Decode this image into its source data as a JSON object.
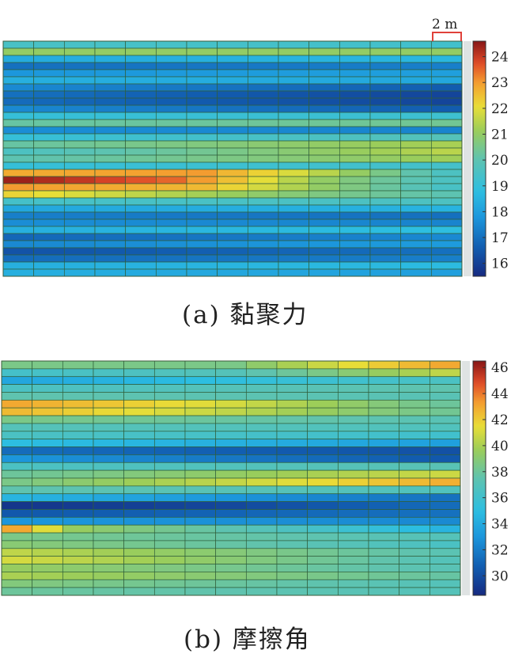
{
  "scale_label": "2 m",
  "chart_data": [
    {
      "type": "heatmap",
      "caption": "(a) 黏聚力",
      "colorbar": {
        "min": 15.5,
        "max": 24.6,
        "ticks": [
          24,
          23,
          22,
          21,
          20,
          19,
          18,
          17,
          16
        ]
      },
      "cols": 15,
      "row_profiles": [
        [
          [
            0,
            19.5
          ],
          [
            14,
            19.3
          ]
        ],
        [
          [
            0,
            21.0
          ],
          [
            14,
            21.0
          ]
        ],
        [
          [
            0,
            18.3
          ],
          [
            14,
            18.6
          ]
        ],
        [
          [
            0,
            17.0
          ],
          [
            14,
            17.3
          ]
        ],
        [
          [
            0,
            17.8
          ],
          [
            14,
            18.0
          ]
        ],
        [
          [
            0,
            18.4
          ],
          [
            14,
            18.2
          ]
        ],
        [
          [
            0,
            17.5
          ],
          [
            14,
            16.6
          ]
        ],
        [
          [
            0,
            17.0
          ],
          [
            14,
            16.1
          ]
        ],
        [
          [
            0,
            16.9
          ],
          [
            14,
            16.1
          ]
        ],
        [
          [
            0,
            17.5
          ],
          [
            14,
            16.6
          ]
        ],
        [
          [
            0,
            19.0
          ],
          [
            14,
            19.2
          ]
        ],
        [
          [
            0,
            20.2
          ],
          [
            14,
            20.4
          ]
        ],
        [
          [
            0,
            17.6
          ],
          [
            14,
            17.4
          ]
        ],
        [
          [
            0,
            19.0
          ],
          [
            14,
            19.8
          ]
        ],
        [
          [
            0,
            20.2
          ],
          [
            14,
            21.3
          ]
        ],
        [
          [
            0,
            19.6
          ],
          [
            14,
            21.5
          ]
        ],
        [
          [
            0,
            20.0
          ],
          [
            14,
            21.2
          ]
        ],
        [
          [
            0,
            19.0
          ],
          [
            14,
            19.4
          ]
        ],
        [
          [
            0,
            22.8
          ],
          [
            6,
            23.0
          ],
          [
            10,
            21.5
          ],
          [
            14,
            19.6
          ]
        ],
        [
          [
            0,
            24.4
          ],
          [
            5,
            23.5
          ],
          [
            10,
            21.0
          ],
          [
            14,
            19.6
          ]
        ],
        [
          [
            0,
            23.0
          ],
          [
            6,
            22.6
          ],
          [
            10,
            21.0
          ],
          [
            14,
            19.5
          ]
        ],
        [
          [
            0,
            22.2
          ],
          [
            14,
            20.0
          ]
        ],
        [
          [
            0,
            19.4
          ],
          [
            14,
            19.6
          ]
        ],
        [
          [
            0,
            18.2
          ],
          [
            14,
            18.5
          ]
        ],
        [
          [
            0,
            17.3
          ],
          [
            14,
            17.0
          ]
        ],
        [
          [
            0,
            17.6
          ],
          [
            14,
            17.4
          ]
        ],
        [
          [
            0,
            18.4
          ],
          [
            14,
            18.8
          ]
        ],
        [
          [
            0,
            16.8
          ],
          [
            14,
            17.5
          ]
        ],
        [
          [
            0,
            17.5
          ],
          [
            14,
            17.9
          ]
        ],
        [
          [
            0,
            16.4
          ],
          [
            14,
            17.0
          ]
        ],
        [
          [
            0,
            16.9
          ],
          [
            14,
            17.3
          ]
        ],
        [
          [
            0,
            18.4
          ],
          [
            14,
            18.7
          ]
        ],
        [
          [
            0,
            18.4
          ],
          [
            14,
            18.0
          ]
        ]
      ]
    },
    {
      "type": "heatmap",
      "caption": "(b) 摩擦角",
      "colorbar": {
        "min": 28.5,
        "max": 46.5,
        "ticks": [
          46,
          44,
          42,
          40,
          38,
          36,
          34,
          32,
          30
        ]
      },
      "cols": 15,
      "row_profiles": [
        [
          [
            0,
            38.5
          ],
          [
            7,
            38.5
          ],
          [
            11,
            41.5
          ],
          [
            14,
            43.0
          ]
        ],
        [
          [
            0,
            36.2
          ],
          [
            7,
            37.0
          ],
          [
            14,
            40.5
          ]
        ],
        [
          [
            0,
            33.8
          ],
          [
            14,
            36.5
          ]
        ],
        [
          [
            0,
            36.5
          ],
          [
            14,
            37.5
          ]
        ],
        [
          [
            0,
            37.5
          ],
          [
            14,
            37.2
          ]
        ],
        [
          [
            0,
            43.0
          ],
          [
            7,
            41.0
          ],
          [
            14,
            38.0
          ]
        ],
        [
          [
            0,
            42.5
          ],
          [
            7,
            40.5
          ],
          [
            14,
            38.2
          ]
        ],
        [
          [
            0,
            38.5
          ],
          [
            14,
            37.2
          ]
        ],
        [
          [
            0,
            37.0
          ],
          [
            14,
            36.8
          ]
        ],
        [
          [
            0,
            36.5
          ],
          [
            14,
            36.0
          ]
        ],
        [
          [
            0,
            35.0
          ],
          [
            14,
            33.5
          ]
        ],
        [
          [
            0,
            31.3
          ],
          [
            14,
            30.2
          ]
        ],
        [
          [
            0,
            33.0
          ],
          [
            14,
            30.5
          ]
        ],
        [
          [
            0,
            36.5
          ],
          [
            14,
            37.2
          ]
        ],
        [
          [
            0,
            38.0
          ],
          [
            14,
            40.8
          ]
        ],
        [
          [
            0,
            38.5
          ],
          [
            14,
            42.8
          ]
        ],
        [
          [
            0,
            37.5
          ],
          [
            14,
            36.8
          ]
        ],
        [
          [
            0,
            34.5
          ],
          [
            14,
            31.5
          ]
        ],
        [
          [
            0,
            29.0
          ],
          [
            7,
            29.8
          ],
          [
            14,
            31.3
          ]
        ],
        [
          [
            0,
            30.5
          ],
          [
            14,
            31.5
          ]
        ],
        [
          [
            0,
            33.0
          ],
          [
            14,
            32.5
          ]
        ],
        [
          [
            0,
            43.0
          ],
          [
            2,
            39.5
          ],
          [
            14,
            34.5
          ]
        ],
        [
          [
            0,
            38.5
          ],
          [
            14,
            37.0
          ]
        ],
        [
          [
            0,
            39.0
          ],
          [
            14,
            36.5
          ]
        ],
        [
          [
            0,
            40.5
          ],
          [
            14,
            37.3
          ]
        ],
        [
          [
            0,
            41.0
          ],
          [
            14,
            37.0
          ]
        ],
        [
          [
            0,
            39.5
          ],
          [
            14,
            37.2
          ]
        ],
        [
          [
            0,
            40.0
          ],
          [
            14,
            37.8
          ]
        ],
        [
          [
            0,
            38.8
          ],
          [
            14,
            37.0
          ]
        ],
        [
          [
            0,
            38.0
          ],
          [
            14,
            37.0
          ]
        ]
      ]
    }
  ]
}
